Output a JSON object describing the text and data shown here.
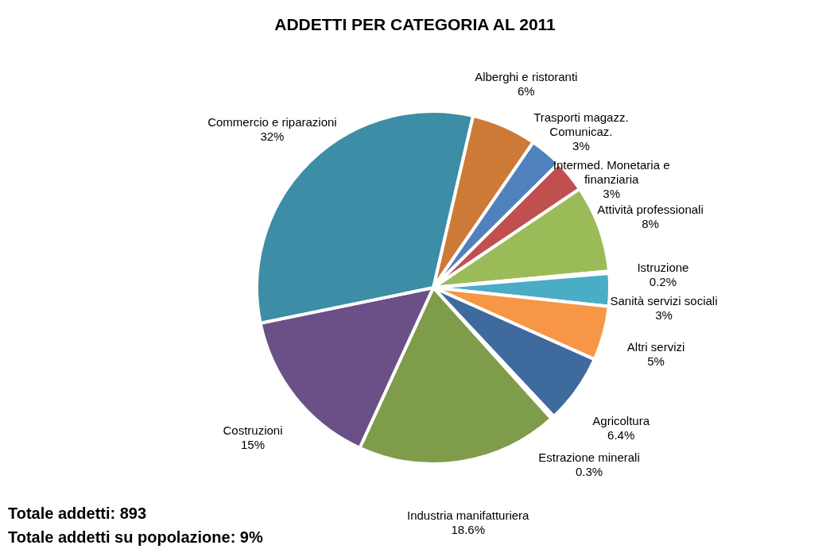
{
  "chart_data": {
    "type": "pie",
    "title": "ADDETTI PER CATEGORIA AL 2011",
    "categories": [
      "Alberghi e ristoranti",
      "Trasporti magazz. Comunicaz.",
      "Intermed. Monetaria e finanziaria",
      "Attività professionali",
      "Istruzione",
      "Sanità servizi sociali",
      "Altri servizi",
      "Agricoltura",
      "Estrazione minerali",
      "Industria manifatturiera",
      "Costruzioni",
      "Commercio e riparazioni"
    ],
    "values": [
      6,
      3,
      3,
      8,
      0.2,
      3,
      5,
      6.4,
      0.3,
      18.6,
      15,
      32
    ],
    "value_labels": [
      "6%",
      "3%",
      "3%",
      "8%",
      "0.2%",
      "3%",
      "5%",
      "6.4%",
      "0.3%",
      "18.6%",
      "15%",
      "32%"
    ],
    "colors": [
      "#cc7a36",
      "#4f81bd",
      "#c0504d",
      "#9bbb59",
      "#8064a2",
      "#4bacc6",
      "#f79646",
      "#3f6a9e",
      "#b0413e",
      "#7f9c4a",
      "#6a5087",
      "#3c8da5"
    ],
    "legend": false,
    "annotations": [
      "Totale addetti:  893",
      "Totale addetti su popolazione:   9%"
    ]
  }
}
